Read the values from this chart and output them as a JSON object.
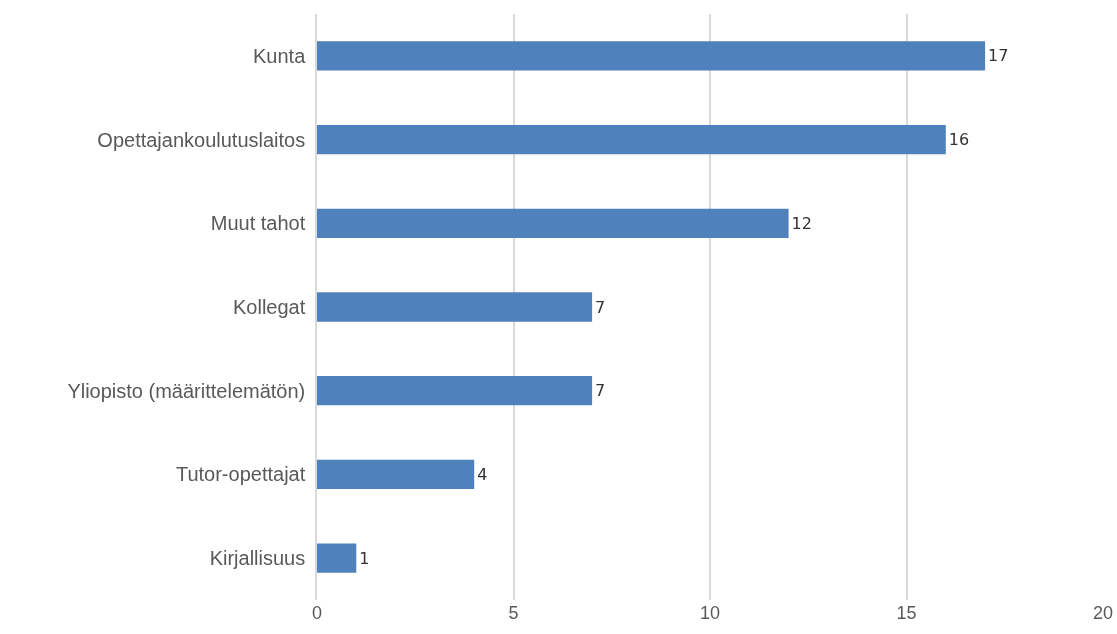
{
  "chart_data": {
    "type": "bar",
    "orientation": "horizontal",
    "categories": [
      "Kunta",
      "Opettajankoulutuslaitos",
      "Muut tahot",
      "Kollegat",
      "Yliopisto (määrittelemätön)",
      "Tutor-opettajat",
      "Kirjallisuus"
    ],
    "values": [
      17,
      16,
      12,
      7,
      7,
      4,
      1
    ],
    "color": "#4f81bd",
    "xlim": [
      0,
      20
    ],
    "xticks": [
      0,
      5,
      10,
      15,
      20
    ],
    "grid": "x",
    "data_labels": true,
    "legend": false
  }
}
